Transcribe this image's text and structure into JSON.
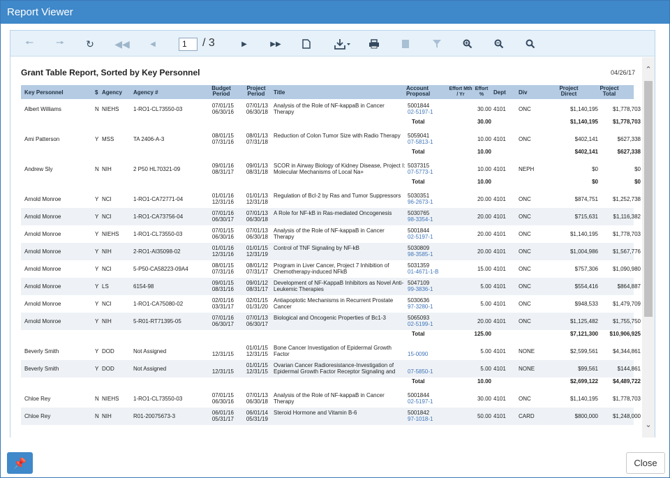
{
  "window": {
    "title": "Report Viewer"
  },
  "toolbar": {
    "page_current": "1",
    "page_total": "/ 3",
    "icons": [
      "back-icon",
      "forward-icon",
      "refresh-icon",
      "first-page-icon",
      "previous-page-icon",
      "next-page-icon",
      "last-page-icon",
      "document-icon",
      "export-icon",
      "print-icon",
      "pages-icon",
      "filter-icon",
      "zoom-in-icon",
      "zoom-out-icon",
      "zoom-fit-icon"
    ]
  },
  "report": {
    "title": "Grant Table Report, Sorted by Key Personnel",
    "date": "04/26/17",
    "columns": {
      "key_personnel": "Key Personnel",
      "funding": "$",
      "agency": "Agency",
      "agency_no": "Agency #",
      "budget_period": "Budget Period",
      "project_period": "Project Period",
      "title": "Title",
      "account_proposal": "Account Proposal",
      "effort_mth_yr": "Effort Mth / Yr",
      "effort_pct": "Effort %",
      "dept": "Dept",
      "div": "Div",
      "project_direct": "Project Direct",
      "project_total": "Project Total"
    },
    "rows": [
      {
        "type": "row",
        "alt": false,
        "name": "Albert Williams",
        "f": "N",
        "agency": "NIEHS",
        "agency_no": "1-RO1-CL73550-03",
        "budget": [
          "07/01/15",
          "06/30/16"
        ],
        "project": [
          "07/01/13",
          "06/30/18"
        ],
        "title": "Analysis of the Role of NF-kappaB in Cancer Therapy",
        "acct": "5001844",
        "prop": "02-5197-1",
        "effort": "30.00",
        "dept": "4101",
        "div": "ONC",
        "direct": "$1,140,195",
        "total": "$1,778,703"
      },
      {
        "type": "total",
        "label": "Total",
        "effort": "30.00",
        "direct": "$1,140,195",
        "total": "$1,778,703"
      },
      {
        "type": "gap"
      },
      {
        "type": "row",
        "alt": false,
        "name": "Ami Patterson",
        "f": "Y",
        "agency": "MSS",
        "agency_no": "TA 2406-A-3",
        "budget": [
          "08/01/15",
          "07/31/16"
        ],
        "project": [
          "08/01/13",
          "07/31/18"
        ],
        "title": "Reduction of Colon Tumor Size with Radio Therapy",
        "acct": "5059041",
        "prop": "07-5813-1",
        "effort": "10.00",
        "dept": "4101",
        "div": "ONC",
        "direct": "$402,141",
        "total": "$627,338"
      },
      {
        "type": "total",
        "label": "Total",
        "effort": "10.00",
        "direct": "$402,141",
        "total": "$627,338"
      },
      {
        "type": "gap"
      },
      {
        "type": "row",
        "alt": false,
        "name": "Andrew Sly",
        "f": "N",
        "agency": "NIH",
        "agency_no": "2 P50 HL70321-09",
        "budget": [
          "09/01/16",
          "08/31/17"
        ],
        "project": [
          "09/01/13",
          "08/31/18"
        ],
        "title": "SCOR in Airway Biology of Kidney Disease, Project I: Molecular Mechanisms of Local Na+",
        "acct": "5037315",
        "prop": "07-5773-1",
        "effort": "10.00",
        "dept": "4101",
        "div": "NEPH",
        "direct": "$0",
        "total": "$0"
      },
      {
        "type": "total",
        "label": "Total",
        "effort": "10.00",
        "direct": "$0",
        "total": "$0"
      },
      {
        "type": "gap"
      },
      {
        "type": "row",
        "alt": false,
        "name": "Arnold Monroe",
        "f": "Y",
        "agency": "NCI",
        "agency_no": "1-RO1-CA72771-04",
        "budget": [
          "01/01/16",
          "12/31/16"
        ],
        "project": [
          "01/01/13",
          "12/31/18"
        ],
        "title": "Regulation of Bcl-2 by Ras and Tumor Suppressors",
        "acct": "5030351",
        "prop": "96-2673-1",
        "effort": "20.00",
        "dept": "4101",
        "div": "ONC",
        "direct": "$874,751",
        "total": "$1,252,738"
      },
      {
        "type": "row",
        "alt": true,
        "name": "Arnold Monroe",
        "f": "Y",
        "agency": "NCI",
        "agency_no": "1-RO1-CA73756-04",
        "budget": [
          "07/01/16",
          "06/30/17"
        ],
        "project": [
          "07/01/13",
          "06/30/18"
        ],
        "title": "A Role for NF-kB in Ras-mediated Oncogenesis",
        "acct": "5030765",
        "prop": "98-3354-1",
        "effort": "20.00",
        "dept": "4101",
        "div": "ONC",
        "direct": "$715,631",
        "total": "$1,116,382"
      },
      {
        "type": "row",
        "alt": false,
        "name": "Arnold Monroe",
        "f": "Y",
        "agency": "NIEHS",
        "agency_no": "1-RO1-CL73550-03",
        "budget": [
          "07/01/15",
          "06/30/16"
        ],
        "project": [
          "07/01/13",
          "06/30/18"
        ],
        "title": "Analysis of the Role of NF-kappaB in Cancer Therapy",
        "acct": "5001844",
        "prop": "02-5197-1",
        "effort": "20.00",
        "dept": "4101",
        "div": "ONC",
        "direct": "$1,140,195",
        "total": "$1,778,703"
      },
      {
        "type": "row",
        "alt": true,
        "name": "Arnold Monroe",
        "f": "Y",
        "agency": "NIH",
        "agency_no": "2-RO1-AI35098-02",
        "budget": [
          "01/01/16",
          "12/31/16"
        ],
        "project": [
          "01/01/15",
          "12/31/19"
        ],
        "title": "Control of TNF Signaling by NF-kB",
        "acct": "5030809",
        "prop": "98-3585-1",
        "effort": "20.00",
        "dept": "4101",
        "div": "ONC",
        "direct": "$1,004,986",
        "total": "$1,567,776"
      },
      {
        "type": "row",
        "alt": false,
        "name": "Arnold Monroe",
        "f": "Y",
        "agency": "NCI",
        "agency_no": "5-P50-CA58223-09A4",
        "budget": [
          "08/01/15",
          "07/31/16"
        ],
        "project": [
          "08/01/12",
          "07/31/17"
        ],
        "title": "Program in Liver Cancer, Project 7 Inhibition of Chemotherapy-induced NFkB",
        "acct": "5031359",
        "prop": "01-4671-1-B",
        "effort": "15.00",
        "dept": "4101",
        "div": "ONC",
        "direct": "$757,306",
        "total": "$1,090,980"
      },
      {
        "type": "row",
        "alt": true,
        "name": "Arnold Monroe",
        "f": "Y",
        "agency": "LS",
        "agency_no": "6154-98",
        "budget": [
          "09/01/15",
          "08/31/16"
        ],
        "project": [
          "09/01/12",
          "08/31/17"
        ],
        "title": "Development of NF-KappaB Inhibitors as Novel Anti-Leukemic Therapies",
        "acct": "5047109",
        "prop": "99-3836-1",
        "effort": "5.00",
        "dept": "4101",
        "div": "ONC",
        "direct": "$554,416",
        "total": "$864,887"
      },
      {
        "type": "row",
        "alt": false,
        "name": "Arnold Monroe",
        "f": "Y",
        "agency": "NCI",
        "agency_no": "1-RO1-CA75080-02",
        "budget": [
          "02/01/16",
          "03/31/17"
        ],
        "project": [
          "02/01/15",
          "01/31/20"
        ],
        "title": "Antiapoptotic Mechanisms in Recurrent Prostate Cancer",
        "acct": "5030636",
        "prop": "97-3280-1",
        "effort": "5.00",
        "dept": "4101",
        "div": "ONC",
        "direct": "$948,533",
        "total": "$1,479,709"
      },
      {
        "type": "row",
        "alt": true,
        "name": "Arnold Monroe",
        "f": "Y",
        "agency": "NIH",
        "agency_no": "5-R01-RT71395-05",
        "budget": [
          "07/01/16",
          "06/30/17"
        ],
        "project": [
          "07/01/13",
          "06/30/17"
        ],
        "title": "Biological and Oncogenic Properties of Bc1-3",
        "acct": "5065093",
        "prop": "02-5199-1",
        "effort": "20.00",
        "dept": "4101",
        "div": "ONC",
        "direct": "$1,125,482",
        "total": "$1,755,750"
      },
      {
        "type": "total",
        "label": "Total",
        "effort": "125.00",
        "direct": "$7,121,300",
        "total": "$10,906,925"
      },
      {
        "type": "gap"
      },
      {
        "type": "row",
        "alt": false,
        "name": "Beverly Smith",
        "f": "Y",
        "agency": "DOD",
        "agency_no": "Not Assigned",
        "budget": [
          "",
          "12/31/15"
        ],
        "project": [
          "01/01/15",
          "12/31/15"
        ],
        "title": "Bone Cancer Investigation of Epidermal Growth Factor",
        "acct": "",
        "prop": "15-0090",
        "effort": "5.00",
        "dept": "4101",
        "div": "NONE",
        "direct": "$2,599,561",
        "total": "$4,344,861"
      },
      {
        "type": "row",
        "alt": true,
        "name": "Beverly Smith",
        "f": "Y",
        "agency": "DOD",
        "agency_no": "Not Assigned",
        "budget": [
          "",
          "12/31/15"
        ],
        "project": [
          "01/01/15",
          "12/31/15"
        ],
        "title": "Ovarian Cancer Radioresistance-Investigation of Epidermal Growth Factor Receptor Signaling and",
        "acct": "",
        "prop": "07-5850-1",
        "effort": "5.00",
        "dept": "4101",
        "div": "NONE",
        "direct": "$99,561",
        "total": "$144,861"
      },
      {
        "type": "total",
        "label": "Total",
        "effort": "10.00",
        "direct": "$2,699,122",
        "total": "$4,489,722"
      },
      {
        "type": "gap"
      },
      {
        "type": "row",
        "alt": false,
        "name": "Chloe Rey",
        "f": "N",
        "agency": "NIEHS",
        "agency_no": "1-RO1-CL73550-03",
        "budget": [
          "07/01/15",
          "06/30/16"
        ],
        "project": [
          "07/01/13",
          "06/30/18"
        ],
        "title": "Analysis of the Role of NF-kappaB in Cancer Therapy",
        "acct": "5001844",
        "prop": "02-5197-1",
        "effort": "30.00",
        "dept": "4101",
        "div": "ONC",
        "direct": "$1,140,195",
        "total": "$1,778,703"
      },
      {
        "type": "row",
        "alt": true,
        "name": "Chloe Rey",
        "f": "N",
        "agency": "NIH",
        "agency_no": "R01-20075673-3",
        "budget": [
          "06/01/16",
          "05/31/17"
        ],
        "project": [
          "06/01/14",
          "05/31/19"
        ],
        "title": "Steroid Hormone and Vitamin B-6",
        "acct": "5001842",
        "prop": "97-1018-1",
        "effort": "50.00",
        "dept": "4101",
        "div": "CARD",
        "direct": "$800,000",
        "total": "$1,248,000"
      }
    ]
  },
  "footer": {
    "close_label": "Close"
  }
}
